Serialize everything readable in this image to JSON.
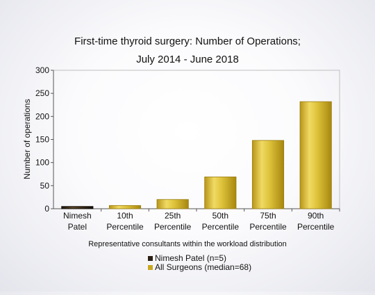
{
  "chart_data": {
    "type": "bar",
    "title": "First-time thyroid surgery: Number of Operations;",
    "subtitle": "July 2014 - June 2018",
    "xlabel": "Representative consultants within the workload distribution",
    "ylabel": "Number of operations",
    "ylim": [
      0,
      300
    ],
    "yticks": [
      "0",
      "50",
      "100",
      "150",
      "200",
      "250",
      "300"
    ],
    "categories": [
      [
        "Nimesh",
        "Patel"
      ],
      [
        "10th",
        "Percentile"
      ],
      [
        "25th",
        "Percentile"
      ],
      [
        "50th",
        "Percentile"
      ],
      [
        "75th",
        "Percentile"
      ],
      [
        "90th",
        "Percentile"
      ]
    ],
    "values": [
      5,
      7,
      20,
      69,
      148,
      232
    ],
    "bar_series": [
      0,
      1,
      1,
      1,
      1,
      1
    ],
    "series": [
      {
        "name": "Nimesh Patel (n=5)",
        "color": "#2a1f14"
      },
      {
        "name": "All Surgeons (median=68)",
        "color": "#c9a820"
      }
    ],
    "grid": false,
    "legend_position": "bottom-center"
  }
}
